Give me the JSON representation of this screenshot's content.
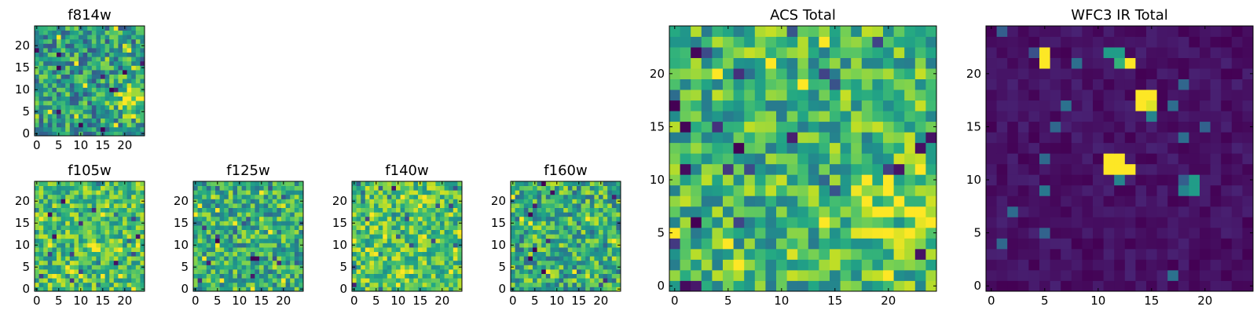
{
  "chart_data": [
    {
      "type": "heatmap",
      "title": "f814w",
      "xlim": [
        0,
        24
      ],
      "ylim": [
        0,
        24
      ],
      "xticks": [
        "0",
        "5",
        "10",
        "15",
        "20"
      ],
      "yticks": [
        "0",
        "5",
        "10",
        "15",
        "20"
      ],
      "colormap": "viridis",
      "pattern": "noisy mid-range values, brighter patch lower-right",
      "seed": 11,
      "base": 0.55,
      "noise": 0.18,
      "blobs": [
        [
          22,
          8,
          3,
          0.35
        ]
      ]
    },
    {
      "type": "heatmap",
      "title": "f105w",
      "xlim": [
        0,
        24
      ],
      "ylim": [
        0,
        24
      ],
      "xticks": [
        "0",
        "5",
        "10",
        "15",
        "20"
      ],
      "yticks": [
        "0",
        "5",
        "10",
        "15",
        "20"
      ],
      "colormap": "viridis",
      "pattern": "noisy, mostly green/yellow",
      "seed": 23,
      "base": 0.7,
      "noise": 0.15,
      "blobs": []
    },
    {
      "type": "heatmap",
      "title": "f125w",
      "xlim": [
        0,
        24
      ],
      "ylim": [
        0,
        24
      ],
      "xticks": [
        "0",
        "5",
        "10",
        "15",
        "20"
      ],
      "yticks": [
        "0",
        "5",
        "10",
        "15",
        "20"
      ],
      "colormap": "viridis",
      "pattern": "noisy, mostly green",
      "seed": 37,
      "base": 0.62,
      "noise": 0.17,
      "blobs": []
    },
    {
      "type": "heatmap",
      "title": "f140w",
      "xlim": [
        0,
        24
      ],
      "ylim": [
        0,
        24
      ],
      "xticks": [
        "0",
        "5",
        "10",
        "15",
        "20"
      ],
      "yticks": [
        "0",
        "5",
        "10",
        "15",
        "20"
      ],
      "colormap": "viridis",
      "pattern": "noisy, mostly yellow-green",
      "seed": 41,
      "base": 0.72,
      "noise": 0.15,
      "blobs": []
    },
    {
      "type": "heatmap",
      "title": "f160w",
      "xlim": [
        0,
        24
      ],
      "ylim": [
        0,
        24
      ],
      "xticks": [
        "0",
        "5",
        "10",
        "15",
        "20"
      ],
      "yticks": [
        "0",
        "5",
        "10",
        "15",
        "20"
      ],
      "colormap": "viridis",
      "pattern": "noisy, mostly green",
      "seed": 53,
      "base": 0.62,
      "noise": 0.18,
      "blobs": []
    },
    {
      "type": "heatmap",
      "title": "ACS Total",
      "xlim": [
        0,
        24
      ],
      "ylim": [
        0,
        24
      ],
      "xticks": [
        "0",
        "5",
        "10",
        "15",
        "20"
      ],
      "yticks": [
        "0",
        "5",
        "10",
        "15",
        "20"
      ],
      "colormap": "viridis",
      "pattern": "noisy green with brighter yellow region around x 17-24, y 5-9",
      "seed": 67,
      "base": 0.66,
      "noise": 0.16,
      "blobs": [
        [
          21,
          7,
          3,
          0.25
        ]
      ]
    },
    {
      "type": "heatmap",
      "title": "WFC3 IR Total",
      "xlim": [
        0,
        24
      ],
      "ylim": [
        0,
        24
      ],
      "xticks": [
        "0",
        "5",
        "10",
        "15",
        "20"
      ],
      "yticks": [
        "0",
        "5",
        "10",
        "15",
        "20"
      ],
      "colormap": "viridis",
      "pattern": "dark background with bright compact sources",
      "seed": 79,
      "base": 0.05,
      "noise": 0.03,
      "blobs": [],
      "sources": [
        [
          5,
          22,
          1.0
        ],
        [
          5,
          21,
          1.0
        ],
        [
          4,
          22,
          0.25
        ],
        [
          11,
          22,
          0.55
        ],
        [
          12,
          22,
          0.55
        ],
        [
          12,
          21,
          0.65
        ],
        [
          13,
          21,
          1.0
        ],
        [
          14,
          18,
          1.0
        ],
        [
          15,
          18,
          1.0
        ],
        [
          14,
          17,
          1.0
        ],
        [
          15,
          17,
          0.95
        ],
        [
          15,
          16,
          0.45
        ],
        [
          11,
          12,
          1.0
        ],
        [
          12,
          12,
          1.0
        ],
        [
          11,
          11,
          1.0
        ],
        [
          12,
          11,
          1.0
        ],
        [
          13,
          11,
          1.0
        ],
        [
          12,
          10,
          0.45
        ],
        [
          19,
          10,
          0.55
        ],
        [
          18,
          10,
          0.3
        ],
        [
          19,
          9,
          0.55
        ],
        [
          18,
          9,
          0.45
        ]
      ]
    }
  ]
}
